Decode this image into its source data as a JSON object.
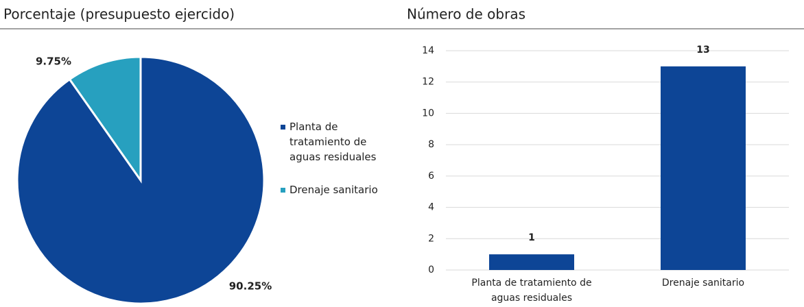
{
  "chart_data": [
    {
      "type": "pie",
      "title": "Porcentaje (presupuesto ejercido)",
      "categories": [
        "Planta de tratamiento de aguas residuales",
        "Drenaje sanitario"
      ],
      "values": [
        90.25,
        9.75
      ],
      "value_labels": [
        "90.25%",
        "9.75%"
      ],
      "colors": [
        "#0d4596",
        "#27a0bf"
      ],
      "legend": "right"
    },
    {
      "type": "bar",
      "title": "Número de obras",
      "categories": [
        "Planta de tratamiento de aguas residuales",
        "Drenaje sanitario"
      ],
      "values": [
        1,
        13
      ],
      "color": "#0d4596",
      "ylim": [
        0,
        14
      ],
      "yticks": [
        0,
        2,
        4,
        6,
        8,
        10,
        12,
        14
      ],
      "grid": true
    }
  ]
}
